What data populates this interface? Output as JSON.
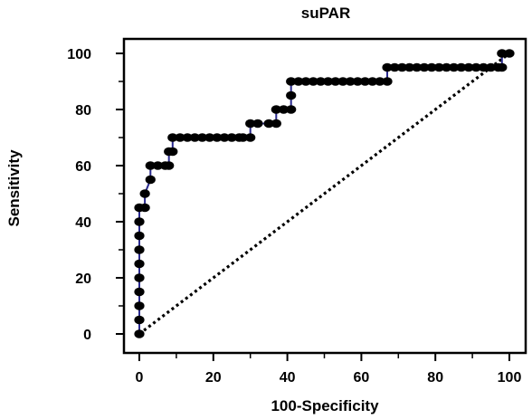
{
  "chart_data": {
    "type": "line",
    "title": "suPAR",
    "xlabel": "100-Specificity",
    "ylabel": "Sensitivity",
    "xlim": [
      0,
      100
    ],
    "ylim": [
      0,
      100
    ],
    "x_ticks": [
      0,
      20,
      40,
      60,
      80,
      100
    ],
    "y_ticks": [
      0,
      20,
      40,
      60,
      80,
      100
    ],
    "x_tick_labels": [
      "0",
      "20",
      "40",
      "60",
      "80",
      "100"
    ],
    "y_tick_labels": [
      "0",
      "20",
      "40",
      "60",
      "80",
      "100"
    ],
    "grid": false,
    "colors": {
      "line": "#2b2b8f",
      "marker": "#000000",
      "diagonal": "#000000"
    },
    "series": [
      {
        "marker": "filled-circle",
        "x": [
          0,
          0,
          0,
          0,
          0,
          0,
          0,
          0,
          0,
          0,
          1.5,
          1.5,
          3,
          3,
          5,
          7,
          8,
          8,
          9,
          9,
          11,
          13,
          15,
          17,
          19,
          21,
          23,
          25,
          27,
          28,
          30,
          30,
          32,
          35,
          37,
          37,
          39,
          41,
          41,
          41,
          43,
          45,
          47,
          49,
          51,
          53,
          55,
          57,
          59,
          61,
          63,
          65,
          67,
          67,
          69,
          71,
          73,
          75,
          77,
          79,
          81,
          83,
          85,
          87,
          89,
          91,
          93,
          95,
          97,
          98,
          98,
          100
        ],
        "y": [
          0,
          5,
          10,
          15,
          20,
          25,
          30,
          35,
          40,
          45,
          45,
          50,
          55,
          60,
          60,
          60,
          60,
          65,
          65,
          70,
          70,
          70,
          70,
          70,
          70,
          70,
          70,
          70,
          70,
          70,
          70,
          75,
          75,
          75,
          75,
          80,
          80,
          80,
          85,
          90,
          90,
          90,
          90,
          90,
          90,
          90,
          90,
          90,
          90,
          90,
          90,
          90,
          90,
          95,
          95,
          95,
          95,
          95,
          95,
          95,
          95,
          95,
          95,
          95,
          95,
          95,
          95,
          95,
          95,
          95,
          100,
          100
        ]
      },
      {
        "style": "dotted",
        "x": [
          0,
          100
        ],
        "y": [
          0,
          100
        ]
      }
    ]
  }
}
